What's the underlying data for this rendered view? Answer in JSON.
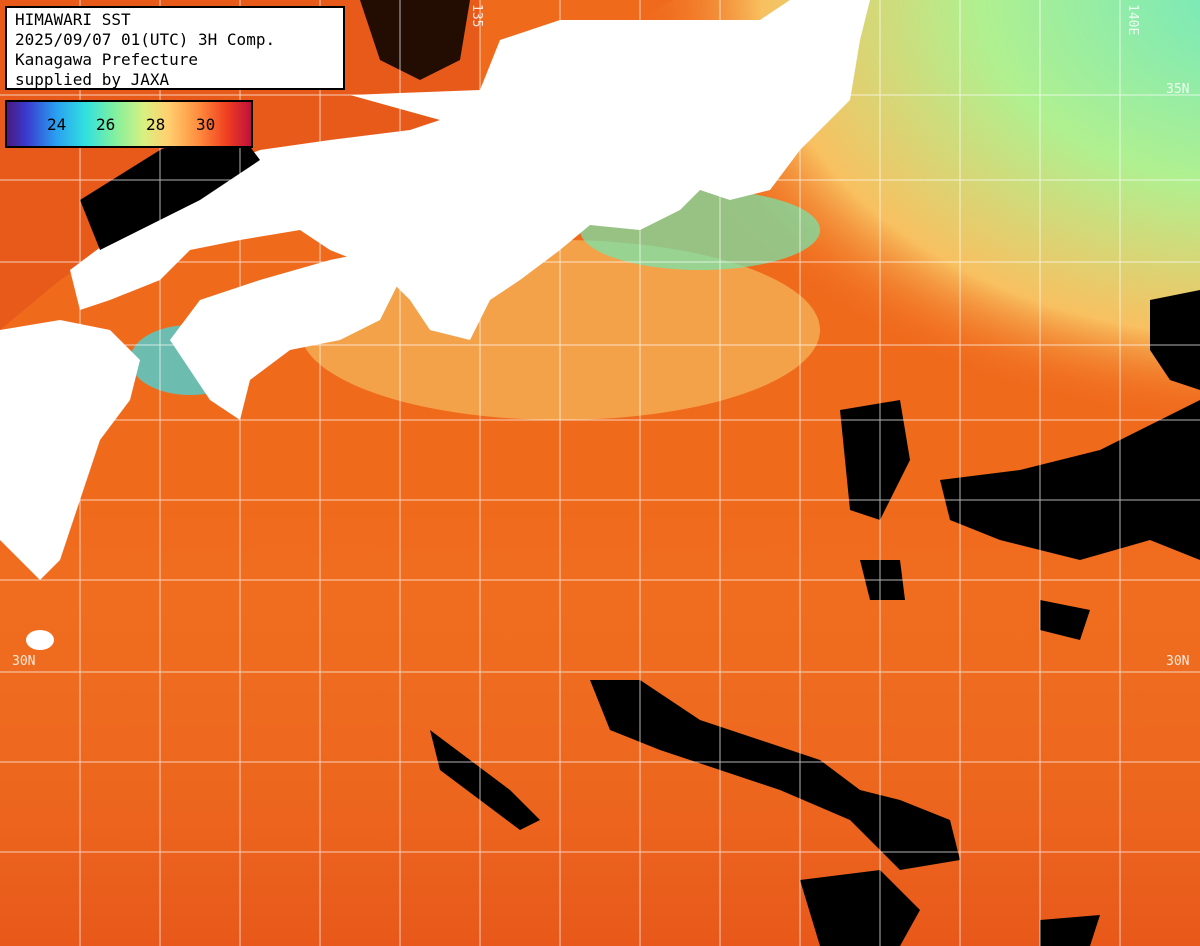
{
  "title_box": {
    "line1": "HIMAWARI SST",
    "line2": "2025/09/07 01(UTC) 3H Comp.",
    "line3": "Kanagawa Prefecture",
    "line4": "supplied by JAXA"
  },
  "legend": {
    "ticks": [
      "24",
      "26",
      "28",
      "30"
    ],
    "colors": {
      "low": "#4a1a80",
      "mid": "#7ff0a0",
      "high": "#c0103c"
    }
  },
  "grid_labels": {
    "lat_35_left": "",
    "lat_35_right": "35N",
    "lat_30_left": "30N",
    "lat_30_right": "30N",
    "lon_top_a": "135",
    "lon_top_b": "140E"
  },
  "colors": {
    "land": "#ffffff",
    "no_data": "#000000",
    "ocean_warm": "#f06a1c",
    "ocean_cool": "#8ff0a8",
    "grid": "#ffffff"
  }
}
